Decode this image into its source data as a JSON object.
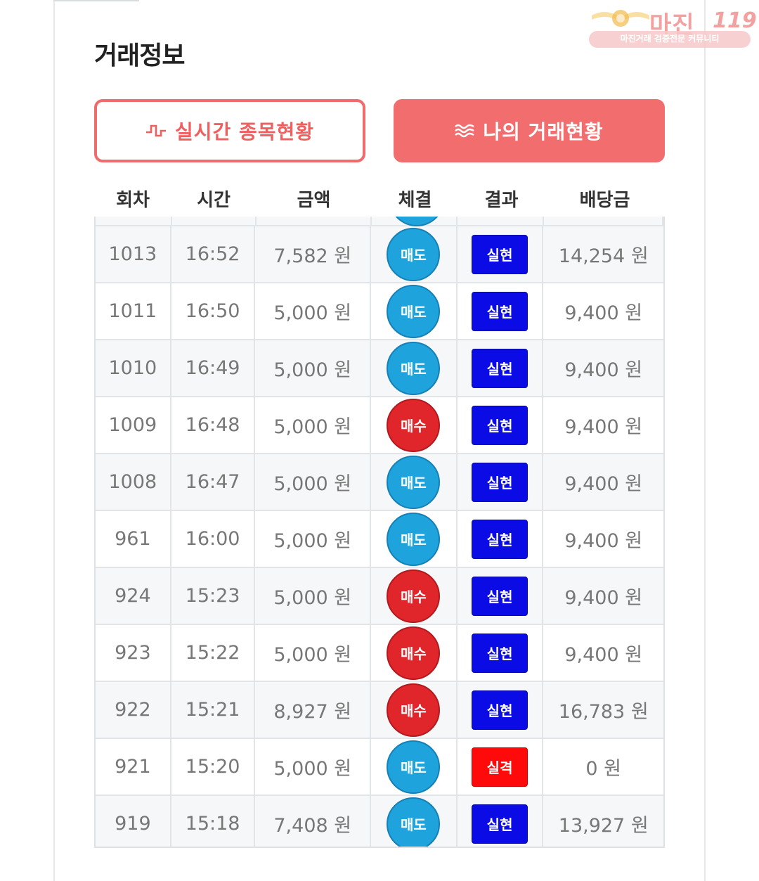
{
  "watermark": {
    "title": "마진",
    "number": "119",
    "subtitle": "마진거래 검증전문 커뮤니티"
  },
  "section": {
    "title": "거래정보"
  },
  "buttons": {
    "realtime": {
      "label": "실시간 종목현황",
      "icon": "pulse-icon"
    },
    "mytrade": {
      "label": "나의 거래현황",
      "icon": "waves-icon"
    }
  },
  "colors": {
    "accent": "#f26e6e",
    "sell": "#1ea3dc",
    "buy": "#e0262b",
    "win": "#0b0be6",
    "lose": "#ff0a0a"
  },
  "table": {
    "headers": [
      "회차",
      "시간",
      "금액",
      "체결",
      "결과",
      "배당금"
    ],
    "rows": [
      {
        "round": "1013",
        "time": "16:52",
        "amount": "7,582 원",
        "exec": "매도",
        "result": "실현",
        "payout": "14,254 원"
      },
      {
        "round": "1011",
        "time": "16:50",
        "amount": "5,000 원",
        "exec": "매도",
        "result": "실현",
        "payout": "9,400 원"
      },
      {
        "round": "1010",
        "time": "16:49",
        "amount": "5,000 원",
        "exec": "매도",
        "result": "실현",
        "payout": "9,400 원"
      },
      {
        "round": "1009",
        "time": "16:48",
        "amount": "5,000 원",
        "exec": "매수",
        "result": "실현",
        "payout": "9,400 원"
      },
      {
        "round": "1008",
        "time": "16:47",
        "amount": "5,000 원",
        "exec": "매도",
        "result": "실현",
        "payout": "9,400 원"
      },
      {
        "round": "961",
        "time": "16:00",
        "amount": "5,000 원",
        "exec": "매도",
        "result": "실현",
        "payout": "9,400 원"
      },
      {
        "round": "924",
        "time": "15:23",
        "amount": "5,000 원",
        "exec": "매수",
        "result": "실현",
        "payout": "9,400 원"
      },
      {
        "round": "923",
        "time": "15:22",
        "amount": "5,000 원",
        "exec": "매수",
        "result": "실현",
        "payout": "9,400 원"
      },
      {
        "round": "922",
        "time": "15:21",
        "amount": "8,927 원",
        "exec": "매수",
        "result": "실현",
        "payout": "16,783 원"
      },
      {
        "round": "921",
        "time": "15:20",
        "amount": "5,000 원",
        "exec": "매도",
        "result": "실격",
        "payout": "0 원"
      },
      {
        "round": "919",
        "time": "15:18",
        "amount": "7,408 원",
        "exec": "매도",
        "result": "실현",
        "payout": "13,927 원"
      }
    ]
  }
}
